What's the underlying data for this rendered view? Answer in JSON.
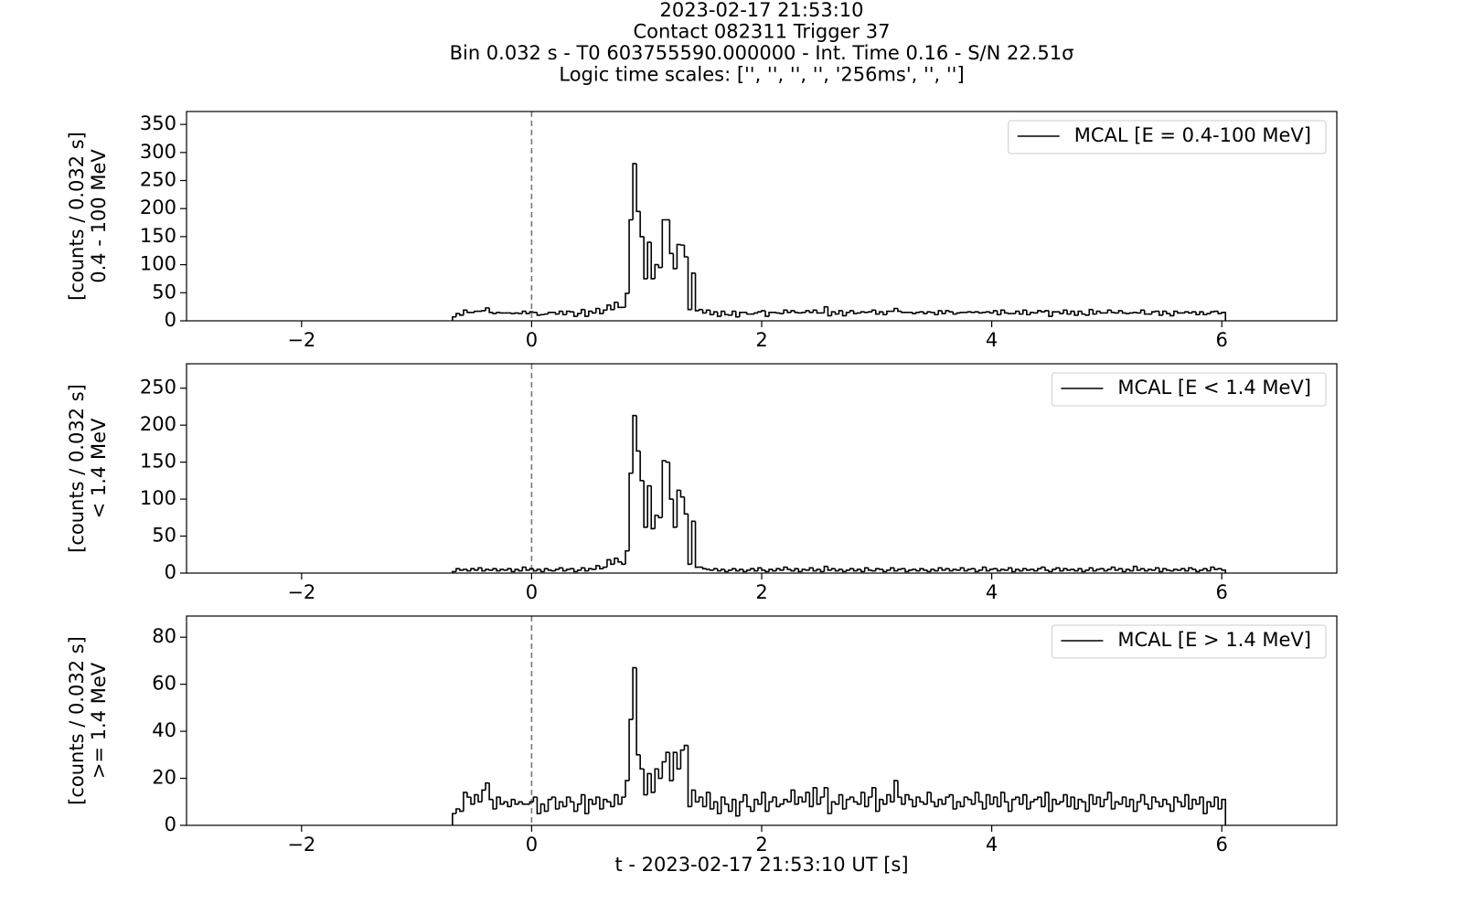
{
  "chart_data": {
    "type": "histogram",
    "title": [
      "2023-02-17 21:53:10",
      "Contact 082311   Trigger 37",
      "Bin 0.032 s - T0 603755590.000000 - Int. Time 0.16 - S/N 22.51σ",
      "Logic time scales: ['', '', '', '', '256ms', '', '']"
    ],
    "x_label": "t - 2023-02-17 21:53:10 UT [s]",
    "xlim": [
      -3,
      7
    ],
    "xticks": [
      {
        "value": -2,
        "label": "−2"
      },
      0,
      2,
      4,
      6
    ],
    "vline": 0,
    "bins": [
      -0.688,
      -0.656,
      -0.624,
      -0.592,
      -0.56,
      -0.528,
      -0.496,
      -0.464,
      -0.432,
      -0.4,
      -0.368,
      -0.336,
      -0.304,
      -0.272,
      -0.24,
      -0.208,
      -0.176,
      -0.144,
      -0.112,
      -0.08,
      -0.048,
      -0.016,
      0.016,
      0.048,
      0.08,
      0.112,
      0.144,
      0.176,
      0.208,
      0.24,
      0.272,
      0.304,
      0.336,
      0.368,
      0.4,
      0.432,
      0.464,
      0.496,
      0.528,
      0.56,
      0.592,
      0.624,
      0.656,
      0.688,
      0.72,
      0.752,
      0.784,
      0.816,
      0.848,
      0.88,
      0.912,
      0.944,
      0.976,
      1.008,
      1.04,
      1.072,
      1.104,
      1.136,
      1.168,
      1.2,
      1.232,
      1.264,
      1.296,
      1.328,
      1.36,
      1.392,
      1.424,
      1.456,
      1.488,
      1.52,
      1.552,
      1.584,
      1.616,
      1.648,
      1.68,
      1.712,
      1.744,
      1.776,
      1.808,
      1.84,
      1.872,
      1.904,
      1.936,
      1.968,
      2.0,
      2.032,
      2.064,
      2.096,
      2.128,
      2.16,
      2.192,
      2.224,
      2.256,
      2.288,
      2.32,
      2.352,
      2.384,
      2.416,
      2.448,
      2.48,
      2.512,
      2.544,
      2.576,
      2.608,
      2.64,
      2.672,
      2.704,
      2.736,
      2.768,
      2.8,
      2.832,
      2.864,
      2.896,
      2.928,
      2.96,
      2.992,
      3.024,
      3.056,
      3.088,
      3.12,
      3.152,
      3.184,
      3.216,
      3.248,
      3.28,
      3.312,
      3.344,
      3.376,
      3.408,
      3.44,
      3.472,
      3.504,
      3.536,
      3.568,
      3.6,
      3.632,
      3.664,
      3.696,
      3.728,
      3.76,
      3.792,
      3.824,
      3.856,
      3.888,
      3.92,
      3.952,
      3.984,
      4.016,
      4.048,
      4.08,
      4.112,
      4.144,
      4.176,
      4.208,
      4.24,
      4.272,
      4.304,
      4.336,
      4.368,
      4.4,
      4.432,
      4.464,
      4.496,
      4.528,
      4.56,
      4.592,
      4.624,
      4.656,
      4.688,
      4.72,
      4.752,
      4.784,
      4.816,
      4.848,
      4.88,
      4.912,
      4.944,
      4.976,
      5.008,
      5.04,
      5.072,
      5.104,
      5.136,
      5.168,
      5.2,
      5.232,
      5.264,
      5.296,
      5.328,
      5.36,
      5.392,
      5.424,
      5.456,
      5.488,
      5.52,
      5.552,
      5.584,
      5.616,
      5.648,
      5.68,
      5.712,
      5.744,
      5.776,
      5.808,
      5.84,
      5.872,
      5.904,
      5.936,
      5.968,
      6.0,
      6.032
    ],
    "panels": [
      {
        "ylabel": [
          "[counts / 0.032 s]",
          "0.4 - 100 MeV"
        ],
        "ylim": [
          0,
          373
        ],
        "yticks": [
          0,
          50,
          100,
          150,
          200,
          250,
          300,
          350
        ],
        "series": [
          {
            "name": "MCAL [E = 0.4-100 MeV]",
            "color": "#000000",
            "values": [
              7,
              13,
              10,
              19,
              15,
              15,
              17,
              17,
              18,
              23,
              15,
              13,
              15,
              14,
              14,
              14,
              13,
              14,
              13,
              17,
              13,
              16,
              15,
              10,
              11,
              12,
              15,
              15,
              12,
              17,
              11,
              17,
              16,
              8,
              13,
              20,
              8,
              17,
              14,
              22,
              13,
              19,
              28,
              20,
              33,
              24,
              24,
              49,
              180,
              280,
              195,
              150,
              75,
              140,
              75,
              100,
              95,
              180,
              180,
              120,
              93,
              136,
              135,
              114,
              20,
              85,
              18,
              20,
              14,
              19,
              11,
              16,
              8,
              17,
              11,
              10,
              17,
              7,
              15,
              15,
              12,
              12,
              14,
              16,
              18,
              8,
              15,
              15,
              14,
              13,
              19,
              15,
              18,
              15,
              14,
              15,
              18,
              15,
              19,
              14,
              14,
              25,
              9,
              16,
              12,
              18,
              9,
              15,
              18,
              13,
              14,
              16,
              15,
              16,
              19,
              12,
              16,
              11,
              17,
              17,
              22,
              17,
              15,
              15,
              15,
              13,
              15,
              16,
              13,
              16,
              15,
              11,
              18,
              13,
              18,
              16,
              12,
              14,
              15,
              15,
              16,
              15,
              16,
              14,
              15,
              16,
              14,
              18,
              11,
              19,
              14,
              13,
              13,
              17,
              12,
              19,
              11,
              15,
              14,
              18,
              16,
              18,
              8,
              16,
              16,
              13,
              19,
              12,
              17,
              10,
              17,
              12,
              10,
              20,
              12,
              17,
              14,
              14,
              19,
              15,
              14,
              18,
              14,
              13,
              14,
              15,
              14,
              19,
              12,
              12,
              16,
              17,
              10,
              17,
              13,
              9,
              17,
              14,
              14,
              16,
              14,
              16,
              11,
              16,
              11,
              13,
              16,
              17,
              13,
              15
            ]
          }
        ]
      },
      {
        "ylabel": [
          "[counts / 0.032 s]",
          "< 1.4 MeV"
        ],
        "ylim": [
          0,
          283
        ],
        "yticks": [
          0,
          50,
          100,
          150,
          200,
          250
        ],
        "series": [
          {
            "name": "MCAL [E < 1.4 MeV]",
            "color": "#000000",
            "values": [
              2,
              6,
              4,
              5,
              3,
              6,
              4,
              7,
              3,
              5,
              4,
              6,
              3,
              5,
              4,
              6,
              2,
              5,
              3,
              8,
              4,
              6,
              3,
              5,
              2,
              6,
              4,
              3,
              5,
              7,
              3,
              5,
              6,
              2,
              4,
              7,
              3,
              6,
              5,
              10,
              6,
              8,
              18,
              12,
              20,
              15,
              12,
              30,
              135,
              213,
              165,
              125,
              62,
              118,
              60,
              78,
              75,
              152,
              150,
              100,
              62,
              112,
              103,
              80,
              12,
              70,
              8,
              8,
              6,
              5,
              4,
              6,
              3,
              5,
              2,
              4,
              6,
              3,
              5,
              2,
              4,
              6,
              3,
              7,
              4,
              2,
              5,
              3,
              6,
              4,
              8,
              5,
              3,
              6,
              2,
              5,
              4,
              7,
              3,
              5,
              2,
              9,
              4,
              6,
              3,
              5,
              2,
              4,
              6,
              3,
              5,
              2,
              7,
              4,
              3,
              6,
              5,
              2,
              4,
              7,
              3,
              5,
              6,
              2,
              4,
              5,
              3,
              6,
              4,
              2,
              5,
              3,
              7,
              4,
              6,
              3,
              5,
              4,
              7,
              3,
              5,
              6,
              2,
              4,
              8,
              3,
              5,
              6,
              3,
              5,
              4,
              7,
              2,
              5,
              3,
              6,
              4,
              5,
              3,
              6,
              8,
              4,
              2,
              5,
              7,
              3,
              6,
              4,
              5,
              3,
              6,
              2,
              4,
              7,
              3,
              5,
              6,
              3,
              5,
              8,
              4,
              6,
              2,
              5,
              3,
              9,
              4,
              6,
              3,
              5,
              4,
              7,
              2,
              6,
              4,
              3,
              5,
              4,
              6,
              3,
              7,
              5,
              2,
              4,
              6,
              3,
              8,
              5,
              6,
              4
            ]
          }
        ]
      },
      {
        "ylabel": [
          "[counts / 0.032 s]",
          ">= 1.4 MeV"
        ],
        "ylim": [
          0,
          89
        ],
        "yticks": [
          0,
          20,
          40,
          60,
          80
        ],
        "series": [
          {
            "name": "MCAL [E > 1.4 MeV]",
            "color": "#000000",
            "values": [
              5,
              7,
              6,
              14,
              12,
              9,
              13,
              10,
              15,
              18,
              11,
              7,
              12,
              9,
              10,
              8,
              11,
              9,
              10,
              9,
              9,
              10,
              12,
              5,
              9,
              6,
              11,
              12,
              7,
              10,
              8,
              12,
              10,
              6,
              9,
              13,
              5,
              11,
              9,
              12,
              7,
              11,
              10,
              8,
              13,
              9,
              12,
              19,
              45,
              67,
              30,
              24,
              13,
              22,
              14,
              24,
              20,
              27,
              31,
              19,
              31,
              24,
              32,
              34,
              8,
              15,
              10,
              12,
              8,
              14,
              7,
              10,
              5,
              12,
              9,
              6,
              11,
              4,
              10,
              13,
              8,
              6,
              11,
              9,
              14,
              6,
              10,
              12,
              8,
              9,
              11,
              10,
              15,
              9,
              12,
              10,
              14,
              8,
              16,
              9,
              12,
              16,
              5,
              10,
              9,
              13,
              7,
              11,
              12,
              10,
              9,
              14,
              8,
              12,
              16,
              6,
              11,
              9,
              13,
              10,
              19,
              12,
              9,
              13,
              11,
              8,
              12,
              10,
              9,
              14,
              10,
              8,
              11,
              9,
              12,
              13,
              7,
              10,
              8,
              12,
              11,
              9,
              14,
              10,
              7,
              13,
              9,
              12,
              8,
              14,
              10,
              6,
              11,
              12,
              9,
              13,
              7,
              10,
              11,
              12,
              8,
              14,
              6,
              11,
              9,
              10,
              13,
              8,
              12,
              7,
              11,
              10,
              6,
              13,
              9,
              12,
              8,
              11,
              14,
              7,
              10,
              9,
              12,
              8,
              11,
              6,
              10,
              13,
              9,
              7,
              12,
              10,
              8,
              11,
              9,
              6,
              12,
              10,
              8,
              13,
              7,
              11,
              9,
              12,
              5,
              10,
              8,
              12,
              7,
              11
            ]
          }
        ]
      }
    ]
  }
}
